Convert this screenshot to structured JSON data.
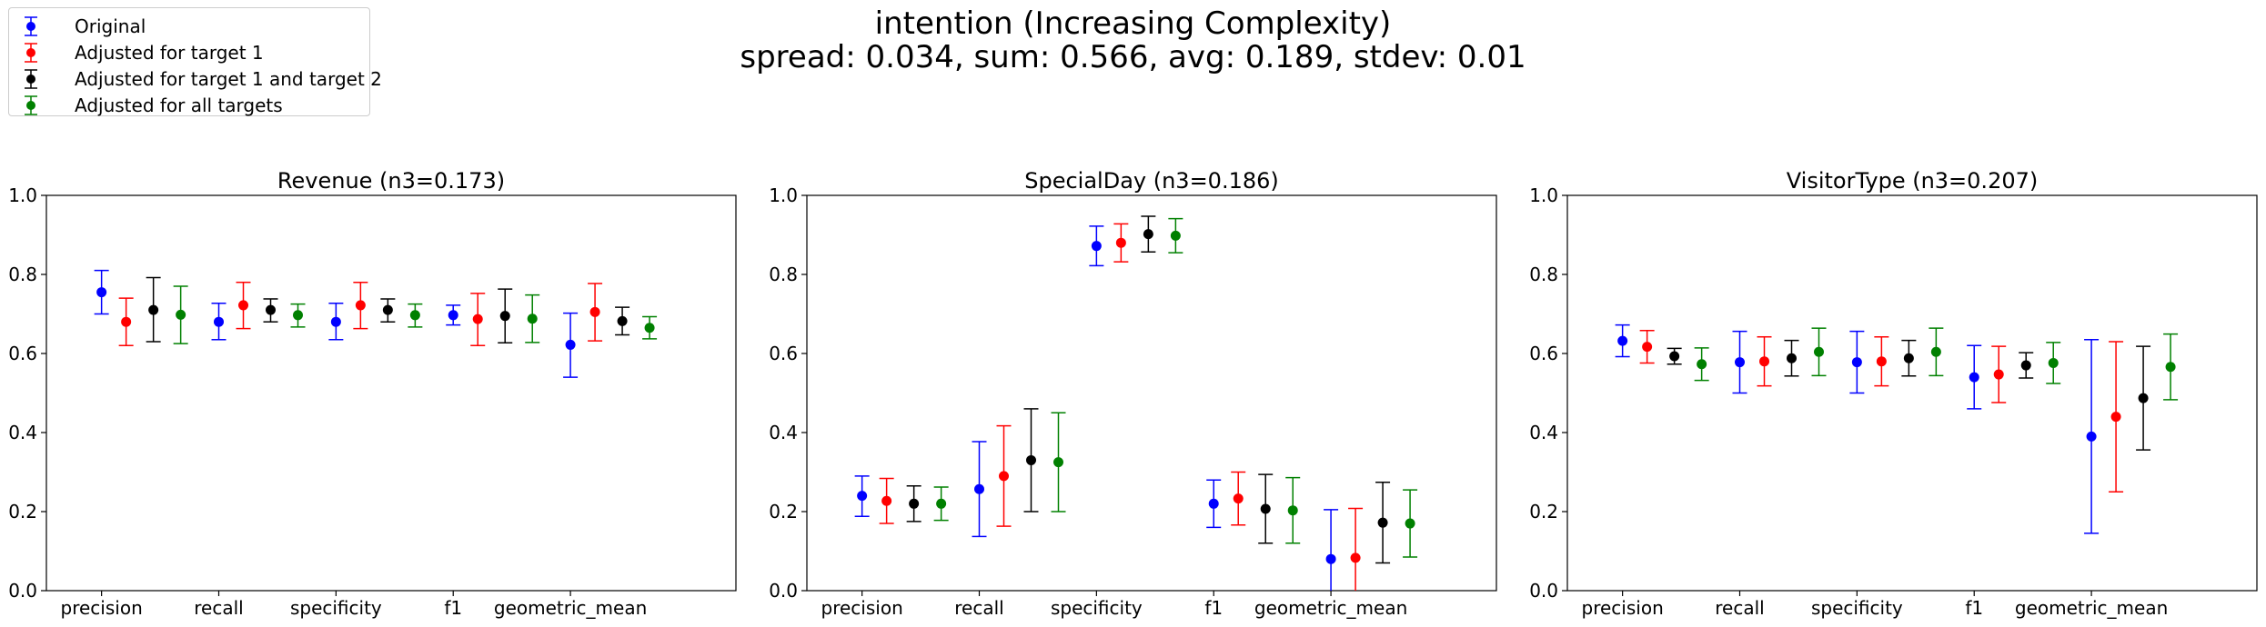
{
  "suptitle": {
    "line1": "intention (Increasing Complexity)",
    "line2": "spread: 0.034, sum: 0.566, avg: 0.189, stdev: 0.01"
  },
  "legend": [
    {
      "label": "Original",
      "color": "#0000ff"
    },
    {
      "label": "Adjusted for target 1",
      "color": "#ff0000"
    },
    {
      "label": "Adjusted for target 1 and target 2",
      "color": "#000000"
    },
    {
      "label": "Adjusted for all targets",
      "color": "#008000"
    }
  ],
  "chart_data": [
    {
      "type": "scatter",
      "title": "Revenue (n3=0.173)",
      "categories": [
        "precision",
        "recall",
        "specificity",
        "f1",
        "geometric_mean"
      ],
      "ylim": [
        0,
        1
      ],
      "yticks": [
        "0.0",
        "0.2",
        "0.4",
        "0.6",
        "0.8",
        "1.0"
      ],
      "series": [
        {
          "name": "Original",
          "values": [
            0.755,
            0.68,
            0.68,
            0.697,
            0.622
          ],
          "lower": [
            0.7,
            0.635,
            0.635,
            0.672,
            0.54
          ],
          "upper": [
            0.81,
            0.727,
            0.727,
            0.722,
            0.702
          ]
        },
        {
          "name": "Adjusted for target 1",
          "values": [
            0.68,
            0.722,
            0.722,
            0.687,
            0.705
          ],
          "lower": [
            0.62,
            0.663,
            0.663,
            0.62,
            0.632
          ],
          "upper": [
            0.74,
            0.78,
            0.78,
            0.752,
            0.777
          ]
        },
        {
          "name": "Adjusted for target 1 and target 2",
          "values": [
            0.71,
            0.71,
            0.71,
            0.695,
            0.682
          ],
          "lower": [
            0.63,
            0.68,
            0.68,
            0.627,
            0.647
          ],
          "upper": [
            0.792,
            0.738,
            0.738,
            0.763,
            0.717
          ]
        },
        {
          "name": "Adjusted for all targets",
          "values": [
            0.698,
            0.697,
            0.697,
            0.688,
            0.665
          ],
          "lower": [
            0.625,
            0.667,
            0.667,
            0.628,
            0.637
          ],
          "upper": [
            0.77,
            0.725,
            0.725,
            0.748,
            0.693
          ]
        }
      ]
    },
    {
      "type": "scatter",
      "title": "SpecialDay (n3=0.186)",
      "categories": [
        "precision",
        "recall",
        "specificity",
        "f1",
        "geometric_mean"
      ],
      "ylim": [
        0,
        1
      ],
      "yticks": [
        "0.0",
        "0.2",
        "0.4",
        "0.6",
        "0.8",
        "1.0"
      ],
      "series": [
        {
          "name": "Original",
          "values": [
            0.24,
            0.257,
            0.872,
            0.22,
            0.08
          ],
          "lower": [
            0.188,
            0.137,
            0.822,
            0.16,
            -0.045
          ],
          "upper": [
            0.29,
            0.377,
            0.922,
            0.28,
            0.205
          ]
        },
        {
          "name": "Adjusted for target 1",
          "values": [
            0.227,
            0.29,
            0.88,
            0.233,
            0.083
          ],
          "lower": [
            0.17,
            0.163,
            0.832,
            0.166,
            -0.042
          ],
          "upper": [
            0.284,
            0.417,
            0.928,
            0.3,
            0.208
          ]
        },
        {
          "name": "Adjusted for target 1 and target 2",
          "values": [
            0.22,
            0.33,
            0.902,
            0.207,
            0.172
          ],
          "lower": [
            0.175,
            0.2,
            0.857,
            0.12,
            0.07
          ],
          "upper": [
            0.265,
            0.46,
            0.947,
            0.294,
            0.274
          ]
        },
        {
          "name": "Adjusted for all targets",
          "values": [
            0.22,
            0.325,
            0.898,
            0.203,
            0.17
          ],
          "lower": [
            0.178,
            0.2,
            0.855,
            0.12,
            0.085
          ],
          "upper": [
            0.262,
            0.45,
            0.941,
            0.286,
            0.255
          ]
        }
      ]
    },
    {
      "type": "scatter",
      "title": "VisitorType (n3=0.207)",
      "categories": [
        "precision",
        "recall",
        "specificity",
        "f1",
        "geometric_mean"
      ],
      "ylim": [
        0,
        1
      ],
      "yticks": [
        "0.0",
        "0.2",
        "0.4",
        "0.6",
        "0.8",
        "1.0"
      ],
      "series": [
        {
          "name": "Original",
          "values": [
            0.632,
            0.578,
            0.578,
            0.54,
            0.39
          ],
          "lower": [
            0.592,
            0.5,
            0.5,
            0.46,
            0.145
          ],
          "upper": [
            0.672,
            0.656,
            0.656,
            0.62,
            0.635
          ]
        },
        {
          "name": "Adjusted for target 1",
          "values": [
            0.617,
            0.58,
            0.58,
            0.547,
            0.44
          ],
          "lower": [
            0.576,
            0.518,
            0.518,
            0.476,
            0.25
          ],
          "upper": [
            0.658,
            0.642,
            0.642,
            0.618,
            0.63
          ]
        },
        {
          "name": "Adjusted for target 1 and target 2",
          "values": [
            0.593,
            0.588,
            0.588,
            0.57,
            0.487
          ],
          "lower": [
            0.573,
            0.543,
            0.543,
            0.538,
            0.356
          ],
          "upper": [
            0.613,
            0.633,
            0.633,
            0.602,
            0.618
          ]
        },
        {
          "name": "Adjusted for all targets",
          "values": [
            0.573,
            0.604,
            0.604,
            0.576,
            0.566
          ],
          "lower": [
            0.532,
            0.544,
            0.544,
            0.524,
            0.483
          ],
          "upper": [
            0.614,
            0.664,
            0.664,
            0.628,
            0.649
          ]
        }
      ]
    }
  ]
}
